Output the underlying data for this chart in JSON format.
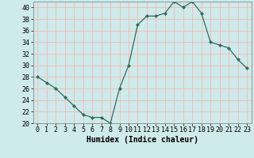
{
  "x": [
    0,
    1,
    2,
    3,
    4,
    5,
    6,
    7,
    8,
    9,
    10,
    11,
    12,
    13,
    14,
    15,
    16,
    17,
    18,
    19,
    20,
    21,
    22,
    23
  ],
  "y": [
    28,
    27,
    26,
    24.5,
    23,
    21.5,
    21,
    21,
    20,
    26,
    30,
    37,
    38.5,
    38.5,
    39,
    41,
    40,
    41,
    39,
    34,
    33.5,
    33,
    31,
    29.5
  ],
  "line_color": "#2e6b5e",
  "marker_color": "#2e6b5e",
  "bg_color": "#ceeaea",
  "grid_color": "#f5b8b8",
  "xlabel": "Humidex (Indice chaleur)",
  "xlabel_fontsize": 7,
  "tick_fontsize": 6,
  "ylim": [
    20,
    41
  ],
  "yticks": [
    20,
    22,
    24,
    26,
    28,
    30,
    32,
    34,
    36,
    38,
    40
  ],
  "xlim": [
    -0.5,
    23.5
  ],
  "xticks": [
    0,
    1,
    2,
    3,
    4,
    5,
    6,
    7,
    8,
    9,
    10,
    11,
    12,
    13,
    14,
    15,
    16,
    17,
    18,
    19,
    20,
    21,
    22,
    23
  ]
}
